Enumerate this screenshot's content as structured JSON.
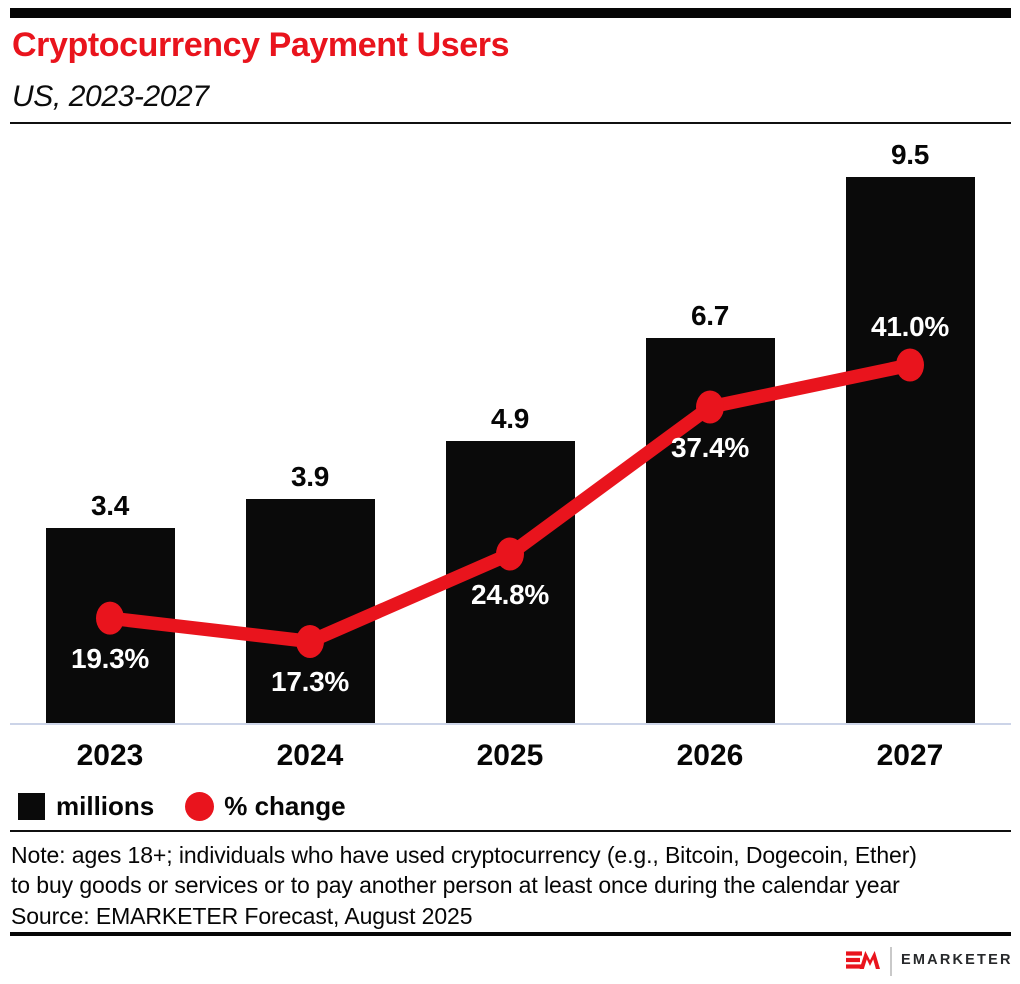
{
  "header": {
    "title": "Cryptocurrency Payment Users",
    "subtitle": "US, 2023-2027"
  },
  "chart_data": {
    "type": "bar",
    "title": "Cryptocurrency Payment Users",
    "subtitle": "US, 2023-2027",
    "categories": [
      "2023",
      "2024",
      "2025",
      "2026",
      "2027"
    ],
    "series": [
      {
        "name": "millions",
        "type": "bar",
        "values": [
          3.4,
          3.9,
          4.9,
          6.7,
          9.5
        ]
      },
      {
        "name": "% change",
        "type": "line",
        "values": [
          19.3,
          17.3,
          24.8,
          37.4,
          41.0
        ]
      }
    ],
    "bar_value_labels": [
      "3.4",
      "3.9",
      "4.9",
      "6.7",
      "9.5"
    ],
    "line_value_labels": [
      "19.3%",
      "17.3%",
      "24.8%",
      "37.4%",
      "41.0%"
    ],
    "pct_label_placement": [
      "below",
      "below",
      "below",
      "below",
      "above"
    ],
    "xlabel": "",
    "ylabel": "",
    "grid": false,
    "legend_position": "bottom",
    "bar_axis_range": [
      0,
      9.5
    ],
    "line_axis_range": [
      17.3,
      41.0
    ]
  },
  "legend": {
    "items": [
      {
        "label": "millions",
        "swatch": "square",
        "color": "#0a0a0a"
      },
      {
        "label": "% change",
        "swatch": "circle",
        "color": "#e9141d"
      }
    ]
  },
  "notes": {
    "line1": "Note: ages 18+; individuals who have used cryptocurrency (e.g., Bitcoin, Dogecoin, Ether)",
    "line2": "to buy goods or services or to pay another person at least once during the calendar year",
    "source": "Source: EMARKETER Forecast, August 2025"
  },
  "branding": {
    "logo_mark": "EM",
    "logo_name": "EMARKETER"
  },
  "colors": {
    "brand_red": "#e9141d",
    "bar_black": "#0a0a0a",
    "axis_line": "#ccd4e8",
    "logo_text": "#27292b"
  }
}
